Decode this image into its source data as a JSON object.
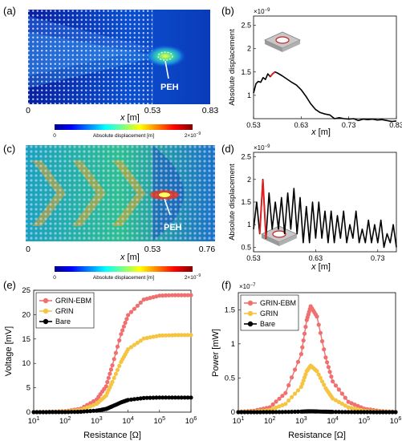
{
  "panels": {
    "a": {
      "label": "(a)",
      "x_ticks": [
        "0",
        "0.53",
        "0.83"
      ],
      "xlabel_var": "x",
      "xlabel_unit": " [m]",
      "annotation": "PEH",
      "colorbar": {
        "label": "Absolute displacement [m]",
        "min": "0",
        "max_base": "2×10",
        "max_exp": "−9"
      }
    },
    "b": {
      "label": "(b)",
      "exponent_base": "×10",
      "exponent_power": "−9",
      "y_ticks": [
        "1",
        "1.5",
        "2",
        "2.5"
      ],
      "x_ticks": [
        "0.53",
        "0.63",
        "0.73",
        "0.83"
      ],
      "xlabel_var": "x",
      "xlabel_unit": " [m]",
      "ylabel": "Absolute displacement"
    },
    "c": {
      "label": "(c)",
      "x_ticks": [
        "0",
        "0.53",
        "0.76"
      ],
      "xlabel_var": "x",
      "xlabel_unit": " [m]",
      "annotation": "PEH",
      "colorbar": {
        "label": "Absolute displacement [m]",
        "min": "0",
        "max_base": "2×10",
        "max_exp": "−9"
      }
    },
    "d": {
      "label": "(d)",
      "exponent_base": "×10",
      "exponent_power": "−9",
      "y_ticks": [
        "0.5",
        "1",
        "1.5",
        "2",
        "2.5"
      ],
      "x_ticks": [
        "0.53",
        "0.63",
        "0.73"
      ],
      "xlabel_var": "x",
      "xlabel_unit": " [m]",
      "ylabel": "Absolute displacement"
    },
    "e": {
      "label": "(e)",
      "y_ticks": [
        "0",
        "5",
        "10",
        "15",
        "20",
        "25"
      ],
      "ylabel": "Voltage [mV]",
      "xlabel": "Resistance [Ω]",
      "legend": [
        "GRIN-EBM",
        "GRIN",
        "Bare"
      ]
    },
    "f": {
      "label": "(f)",
      "exponent_base": "×10",
      "exponent_power": "−7",
      "y_ticks": [
        "0",
        "0.5",
        "1",
        "1.5"
      ],
      "ylabel": "Power [mW]",
      "xlabel": "Resistance [Ω]",
      "legend": [
        "GRIN-EBM",
        "GRIN",
        "Bare"
      ]
    }
  },
  "chart_data": [
    {
      "panel": "b",
      "type": "line",
      "xlabel": "x [m]",
      "ylabel": "Absolute displacement",
      "xlim": [
        0.53,
        0.83
      ],
      "ylim": [
        0.5,
        2.7
      ],
      "y_scale_note": "×10^-9",
      "x": [
        0.53,
        0.535,
        0.54,
        0.545,
        0.55,
        0.555,
        0.56,
        0.565,
        0.57,
        0.575,
        0.58,
        0.59,
        0.6,
        0.61,
        0.62,
        0.63,
        0.64,
        0.65,
        0.66,
        0.67,
        0.68,
        0.69,
        0.7,
        0.71,
        0.72,
        0.73,
        0.74,
        0.75,
        0.76,
        0.77,
        0.78,
        0.79,
        0.8,
        0.81,
        0.82,
        0.83
      ],
      "y": [
        1.05,
        1.25,
        1.3,
        1.28,
        1.38,
        1.34,
        1.46,
        1.4,
        1.46,
        1.5,
        1.48,
        1.42,
        1.35,
        1.28,
        1.22,
        1.12,
        0.98,
        0.82,
        0.7,
        0.63,
        0.6,
        0.58,
        0.5,
        0.52,
        0.5,
        0.49,
        0.5,
        0.46,
        0.49,
        0.48,
        0.49,
        0.47,
        0.48,
        0.46,
        0.44,
        0.45
      ],
      "highlight_range": [
        0.565,
        0.575
      ],
      "colors": {
        "line": "#000000",
        "highlight": "#e02020"
      }
    },
    {
      "panel": "d",
      "type": "line",
      "xlabel": "x [m]",
      "ylabel": "Absolute displacement",
      "xlim": [
        0.53,
        0.76
      ],
      "ylim": [
        0.4,
        2.6
      ],
      "y_scale_note": "×10^-9",
      "x": [
        0.53,
        0.535,
        0.54,
        0.545,
        0.55,
        0.555,
        0.56,
        0.565,
        0.57,
        0.575,
        0.58,
        0.585,
        0.59,
        0.595,
        0.6,
        0.605,
        0.61,
        0.615,
        0.62,
        0.625,
        0.63,
        0.635,
        0.64,
        0.645,
        0.65,
        0.655,
        0.66,
        0.665,
        0.67,
        0.675,
        0.68,
        0.685,
        0.69,
        0.695,
        0.7,
        0.705,
        0.71,
        0.715,
        0.72,
        0.725,
        0.73,
        0.735,
        0.74,
        0.745,
        0.75,
        0.755,
        0.76
      ],
      "y": [
        0.9,
        1.5,
        0.8,
        2.0,
        0.7,
        1.7,
        0.9,
        1.5,
        0.9,
        1.6,
        0.8,
        1.7,
        0.9,
        1.8,
        0.8,
        1.6,
        0.6,
        1.4,
        0.6,
        1.5,
        0.7,
        1.5,
        0.7,
        1.3,
        0.6,
        1.3,
        0.6,
        1.2,
        0.7,
        1.3,
        0.6,
        1.0,
        0.7,
        1.3,
        0.6,
        0.9,
        0.6,
        1.1,
        0.6,
        1.0,
        0.6,
        1.1,
        0.5,
        0.8,
        0.6,
        1.0,
        0.5
      ],
      "highlight_range": [
        0.54,
        0.55
      ],
      "colors": {
        "line": "#000000",
        "highlight": "#e02020"
      }
    },
    {
      "panel": "e",
      "type": "line",
      "xlabel": "Resistance [Ω]",
      "ylabel": "Voltage [mV]",
      "x_scale": "log",
      "xlim": [
        10,
        1000000
      ],
      "ylim": [
        0,
        25
      ],
      "series": [
        {
          "name": "GRIN-EBM",
          "color": "#f07070",
          "x": [
            10,
            31.6,
            100,
            316,
            1000,
            2000,
            3162,
            6000,
            10000,
            31600,
            100000,
            316000,
            1000000
          ],
          "y": [
            0.02,
            0.06,
            0.2,
            0.7,
            2.6,
            5.3,
            9.6,
            16.0,
            19.9,
            23.1,
            23.9,
            24.0,
            24.0
          ]
        },
        {
          "name": "GRIN",
          "color": "#f5c542",
          "x": [
            10,
            31.6,
            100,
            316,
            1000,
            2000,
            3162,
            6000,
            10000,
            31600,
            100000,
            316000,
            1000000
          ],
          "y": [
            0.01,
            0.04,
            0.12,
            0.45,
            1.7,
            3.4,
            6.2,
            10.3,
            12.9,
            15.1,
            15.7,
            15.8,
            15.8
          ]
        },
        {
          "name": "Bare",
          "color": "#000000",
          "x": [
            10,
            31.6,
            100,
            316,
            1000,
            2000,
            3162,
            6000,
            10000,
            31600,
            100000,
            316000,
            1000000
          ],
          "y": [
            0.0,
            0.01,
            0.02,
            0.08,
            0.32,
            0.65,
            1.2,
            2.0,
            2.5,
            2.9,
            3.0,
            3.0,
            3.0
          ]
        }
      ]
    },
    {
      "panel": "f",
      "type": "line",
      "xlabel": "Resistance [Ω]",
      "ylabel": "Power [mW]",
      "x_scale": "log",
      "xlim": [
        10,
        1000000
      ],
      "ylim": [
        0,
        1.75
      ],
      "y_scale_note": "×10^-7",
      "series": [
        {
          "name": "GRIN-EBM",
          "color": "#f07070",
          "x": [
            10,
            31.6,
            100,
            316,
            1000,
            1500,
            2000,
            3162,
            6000,
            10000,
            31600,
            100000,
            316000,
            1000000
          ],
          "y": [
            0.005,
            0.02,
            0.07,
            0.28,
            0.85,
            1.35,
            1.55,
            1.4,
            0.8,
            0.45,
            0.15,
            0.05,
            0.015,
            0.004
          ]
        },
        {
          "name": "GRIN",
          "color": "#f5c542",
          "x": [
            10,
            31.6,
            100,
            316,
            1000,
            1500,
            2000,
            3162,
            6000,
            10000,
            31600,
            100000,
            316000,
            1000000
          ],
          "y": [
            0.002,
            0.008,
            0.03,
            0.12,
            0.37,
            0.6,
            0.68,
            0.6,
            0.35,
            0.2,
            0.07,
            0.02,
            0.006,
            0.002
          ]
        },
        {
          "name": "Bare",
          "color": "#000000",
          "x": [
            10,
            31.6,
            100,
            316,
            1000,
            1500,
            2000,
            3162,
            6000,
            10000,
            31600,
            100000,
            316000,
            1000000
          ],
          "y": [
            0.0,
            0.0,
            0.001,
            0.003,
            0.008,
            0.011,
            0.012,
            0.01,
            0.007,
            0.004,
            0.002,
            0.001,
            0.0,
            0.0
          ]
        }
      ]
    }
  ]
}
